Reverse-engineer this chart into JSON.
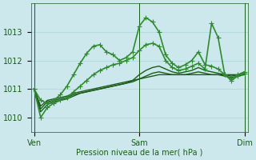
{
  "title": "Pression niveau de la mer( hPa )",
  "bg_color": "#cde8ec",
  "grid_color": "#a8d4da",
  "line_color_dark": "#1a5c1a",
  "line_color_light": "#2e8b2e",
  "ylim": [
    1009.5,
    1014.0
  ],
  "yticks": [
    1010,
    1011,
    1012,
    1013
  ],
  "xtick_labels": [
    "Ven",
    "Sam",
    "Dim"
  ],
  "n_points": 33,
  "series": [
    {
      "y": [
        1011.0,
        1010.4,
        1010.6,
        1010.65,
        1010.7,
        1010.75,
        1010.85,
        1010.9,
        1010.95,
        1011.0,
        1011.05,
        1011.1,
        1011.15,
        1011.2,
        1011.25,
        1011.3,
        1011.35,
        1011.4,
        1011.45,
        1011.5,
        1011.5,
        1011.5,
        1011.5,
        1011.5,
        1011.5,
        1011.5,
        1011.5,
        1011.5,
        1011.5,
        1011.5,
        1011.5,
        1011.5,
        1011.55
      ],
      "color": "#1a5c1a",
      "lw": 1.0,
      "marker": null,
      "ms": 3
    },
    {
      "y": [
        1011.0,
        1010.3,
        1010.55,
        1010.6,
        1010.65,
        1010.7,
        1010.8,
        1010.85,
        1010.9,
        1010.95,
        1011.0,
        1011.05,
        1011.1,
        1011.15,
        1011.2,
        1011.25,
        1011.35,
        1011.45,
        1011.55,
        1011.6,
        1011.55,
        1011.5,
        1011.5,
        1011.5,
        1011.55,
        1011.6,
        1011.55,
        1011.5,
        1011.5,
        1011.45,
        1011.4,
        1011.45,
        1011.5
      ],
      "color": "#1a5c1a",
      "lw": 1.0,
      "marker": null,
      "ms": 3
    },
    {
      "y": [
        1011.0,
        1010.2,
        1010.45,
        1010.55,
        1010.6,
        1010.65,
        1010.75,
        1010.85,
        1010.9,
        1010.95,
        1011.0,
        1011.05,
        1011.1,
        1011.15,
        1011.2,
        1011.3,
        1011.5,
        1011.65,
        1011.75,
        1011.8,
        1011.7,
        1011.6,
        1011.55,
        1011.6,
        1011.65,
        1011.75,
        1011.65,
        1011.6,
        1011.55,
        1011.5,
        1011.45,
        1011.5,
        1011.6
      ],
      "color": "#1a5c1a",
      "lw": 1.0,
      "marker": null,
      "ms": 3
    },
    {
      "y": [
        1011.0,
        1010.0,
        1010.35,
        1010.5,
        1010.6,
        1010.7,
        1010.9,
        1011.1,
        1011.3,
        1011.5,
        1011.65,
        1011.75,
        1011.85,
        1011.9,
        1012.0,
        1012.1,
        1012.35,
        1012.55,
        1012.6,
        1012.5,
        1012.0,
        1011.75,
        1011.65,
        1011.7,
        1011.8,
        1011.9,
        1011.7,
        1013.3,
        1012.8,
        1011.5,
        1011.3,
        1011.45,
        1011.6
      ],
      "color": "#2e8b2e",
      "lw": 1.2,
      "marker": "+",
      "ms": 4
    },
    {
      "y": [
        1011.0,
        1010.6,
        1010.5,
        1010.6,
        1010.8,
        1011.1,
        1011.5,
        1011.9,
        1012.25,
        1012.5,
        1012.55,
        1012.3,
        1012.2,
        1012.0,
        1012.1,
        1012.3,
        1013.2,
        1013.5,
        1013.35,
        1013.0,
        1012.2,
        1011.9,
        1011.75,
        1011.85,
        1012.0,
        1012.3,
        1011.85,
        1011.8,
        1011.7,
        1011.5,
        1011.35,
        1011.5,
        1011.55
      ],
      "color": "#2e8b2e",
      "lw": 1.2,
      "marker": "+",
      "ms": 4
    }
  ],
  "vlines": [
    0,
    16,
    32
  ],
  "xtick_pos": [
    0,
    16,
    32
  ]
}
